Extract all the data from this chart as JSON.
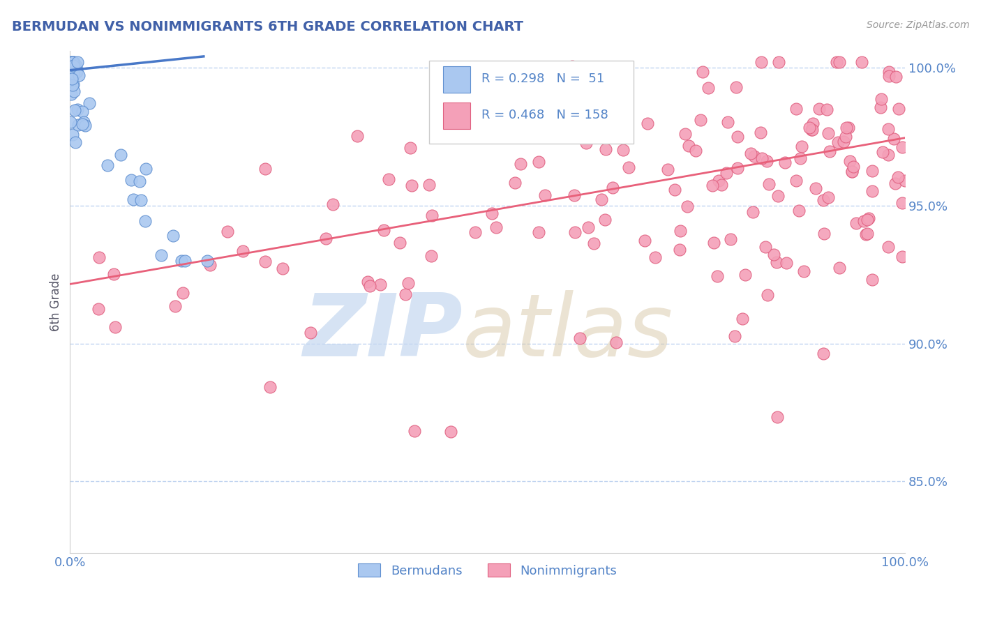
{
  "title": "BERMUDAN VS NONIMMIGRANTS 6TH GRADE CORRELATION CHART",
  "source": "Source: ZipAtlas.com",
  "ylabel": "6th Grade",
  "xlim": [
    0.0,
    1.0
  ],
  "ylim": [
    0.824,
    1.006
  ],
  "yticks": [
    0.85,
    0.9,
    0.95,
    1.0
  ],
  "ytick_labels": [
    "85.0%",
    "90.0%",
    "95.0%",
    "100.0%"
  ],
  "xticks": [
    0.0,
    0.25,
    0.5,
    0.75,
    1.0
  ],
  "xtick_labels": [
    "0.0%",
    "",
    "",
    "",
    "100.0%"
  ],
  "blue_R": 0.298,
  "blue_N": 51,
  "pink_R": 0.468,
  "pink_N": 158,
  "blue_color": "#aac8f0",
  "pink_color": "#f4a0b8",
  "blue_edge_color": "#6090d0",
  "pink_edge_color": "#e06080",
  "blue_line_color": "#4878c8",
  "pink_line_color": "#e8607a",
  "axis_label_color": "#5585c8",
  "title_color": "#4060a8",
  "grid_color": "#c0d4f0",
  "watermark_zip_color": "#c5d8f0",
  "watermark_atlas_color": "#d8c8a8",
  "pink_line_x0": 0.0,
  "pink_line_y0": 0.9215,
  "pink_line_x1": 1.0,
  "pink_line_y1": 0.9745,
  "blue_line_x0": 0.0,
  "blue_line_y0": 0.999,
  "blue_line_x1": 0.16,
  "blue_line_y1": 1.004
}
